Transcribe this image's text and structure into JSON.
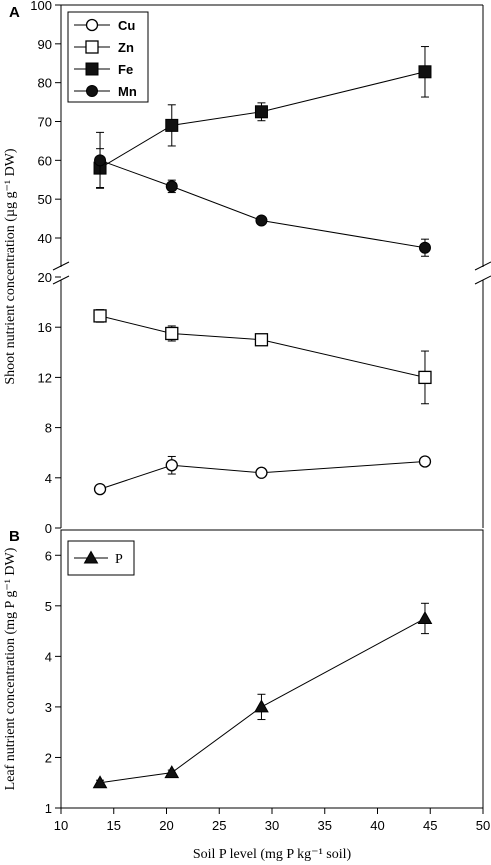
{
  "chart_data": [
    {
      "type": "line",
      "panel": "A",
      "ylabel": "Shoot nutrient concentration (µg g⁻¹ DW)",
      "y_break": true,
      "yticks_upper": [
        40,
        50,
        60,
        70,
        80,
        90,
        100
      ],
      "yticks_lower": [
        0,
        4,
        8,
        12,
        16,
        20
      ],
      "ylim_upper": [
        35,
        100
      ],
      "ylim_lower": [
        0,
        20
      ],
      "x": [
        13.7,
        20.5,
        29,
        44.5
      ],
      "legend": "top-left",
      "series": [
        {
          "name": "Cu",
          "marker": "open-circle",
          "values": [
            3.1,
            5.0,
            4.4,
            5.3
          ],
          "errors": [
            0.2,
            0.7,
            0.3,
            0.3
          ]
        },
        {
          "name": "Zn",
          "marker": "open-square",
          "values": [
            16.9,
            15.5,
            15.0,
            12.0
          ],
          "errors": [
            0.5,
            0.6,
            0.4,
            2.1
          ]
        },
        {
          "name": "Fe",
          "marker": "filled-square",
          "values": [
            58,
            69,
            72.5,
            82.8
          ],
          "errors": [
            5,
            5.3,
            2.3,
            6.5
          ]
        },
        {
          "name": "Mn",
          "marker": "filled-circle",
          "values": [
            60,
            53.3,
            44.5,
            37.5
          ],
          "errors": [
            7.2,
            1.6,
            0.8,
            2.2
          ]
        }
      ]
    },
    {
      "type": "line",
      "panel": "B",
      "ylabel": "Leaf nutrient concentration (mg P g⁻¹ DW)",
      "xlabel": "Soil P level (mg P kg⁻¹ soil)",
      "xlim": [
        10,
        50
      ],
      "xticks": [
        10,
        15,
        20,
        25,
        30,
        35,
        40,
        45,
        50
      ],
      "ylim": [
        1,
        6.5
      ],
      "yticks": [
        1,
        2,
        3,
        4,
        5,
        6
      ],
      "x": [
        13.7,
        20.5,
        29,
        44.5
      ],
      "legend": "top-left",
      "series": [
        {
          "name": "P",
          "marker": "filled-triangle",
          "values": [
            1.5,
            1.7,
            3.0,
            4.75
          ],
          "errors": [
            0.05,
            0.05,
            0.25,
            0.3
          ]
        }
      ]
    }
  ]
}
